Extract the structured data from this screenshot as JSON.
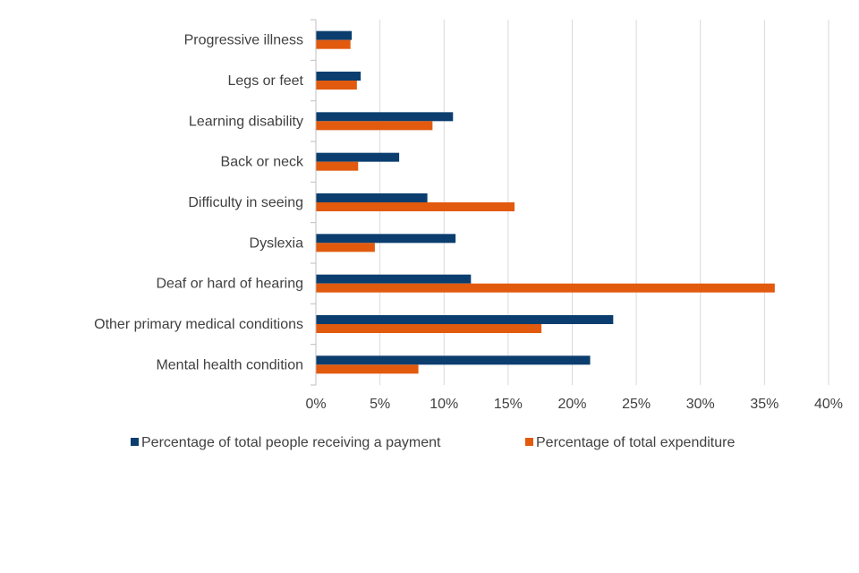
{
  "chart_data": {
    "type": "bar",
    "orientation": "horizontal",
    "title": "",
    "xlabel": "",
    "ylabel": "",
    "categories": [
      "Progressive illness",
      "Legs or feet",
      "Learning disability",
      "Back or neck",
      "Difficulty in seeing",
      "Dyslexia",
      "Deaf or hard of hearing",
      "Other primary medical conditions",
      "Mental health condition"
    ],
    "series": [
      {
        "name": "Percentage of total people receiving a payment",
        "color": "#0b3e6f",
        "values": [
          2.8,
          3.5,
          10.7,
          6.5,
          8.7,
          10.9,
          12.1,
          23.2,
          21.4
        ]
      },
      {
        "name": "Percentage of total expenditure",
        "color": "#e25a0e",
        "values": [
          2.7,
          3.2,
          9.1,
          3.3,
          15.5,
          4.6,
          35.8,
          17.6,
          8.0
        ]
      }
    ],
    "xlim": [
      0,
      40
    ],
    "xticks": [
      0,
      5,
      10,
      15,
      20,
      25,
      30,
      35,
      40
    ],
    "xtick_labels": [
      "0%",
      "5%",
      "10%",
      "15%",
      "20%",
      "25%",
      "30%",
      "35%",
      "40%"
    ],
    "grid": "vertical",
    "legend_position": "bottom"
  }
}
